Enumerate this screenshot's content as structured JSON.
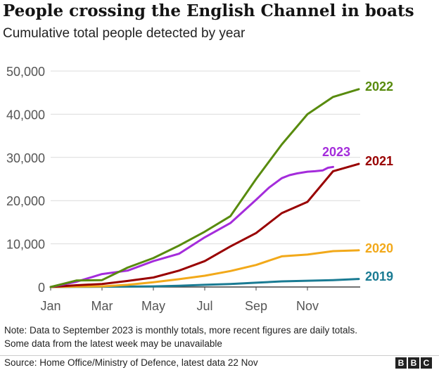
{
  "title": "People crossing the English Channel in boats",
  "subtitle": "Cumulative total people detected by year",
  "note_line1": "Note: Data to September 2023 is monthly totals, more recent figures are daily totals.",
  "note_line2": "Some data from the latest week may be unavailable",
  "source": "Source: Home Office/Ministry of Defence, latest data 22 Nov",
  "logo_letters": [
    "B",
    "B",
    "C"
  ],
  "chart_data": {
    "type": "line",
    "title": "People crossing the English Channel in boats",
    "subtitle": "Cumulative total people detected by year",
    "x_ticks": [
      "Jan",
      "Mar",
      "May",
      "Jul",
      "Sep",
      "Nov"
    ],
    "y_ticks": [
      "0",
      "10,000",
      "20,000",
      "30,000",
      "40,000",
      "50,000"
    ],
    "ylim": [
      0,
      50000
    ],
    "grid": true,
    "legend": "inline labels at line ends",
    "x_unit": "month index (0 = start of Jan)",
    "series": [
      {
        "name": "2022",
        "color": "#588b0e",
        "x": [
          0,
          1,
          2,
          3,
          4,
          5,
          6,
          7,
          8,
          9,
          10,
          11,
          12
        ],
        "y": [
          0,
          1500,
          1600,
          4500,
          6700,
          9600,
          12800,
          16400,
          25000,
          33000,
          40000,
          44000,
          45800
        ]
      },
      {
        "name": "2023",
        "color": "#a42cdb",
        "x": [
          0,
          1,
          2,
          3,
          4,
          5,
          6,
          7,
          8,
          8.5,
          9,
          9.3,
          9.6,
          10,
          10.3,
          10.6,
          10.8,
          11
        ],
        "y": [
          0,
          1200,
          3000,
          3800,
          6000,
          7700,
          11500,
          14800,
          20200,
          23000,
          25200,
          25900,
          26300,
          26700,
          26800,
          27000,
          27600,
          27800
        ]
      },
      {
        "name": "2021",
        "color": "#990000",
        "x": [
          0,
          1,
          2,
          3,
          4,
          5,
          6,
          7,
          8,
          9,
          10,
          11,
          12
        ],
        "y": [
          0,
          400,
          700,
          1400,
          2200,
          3800,
          6000,
          9400,
          12500,
          17100,
          19700,
          26800,
          28500
        ]
      },
      {
        "name": "2020",
        "color": "#f2a91a",
        "x": [
          0,
          1,
          2,
          3,
          4,
          5,
          6,
          7,
          8,
          9,
          10,
          11,
          12
        ],
        "y": [
          0,
          100,
          150,
          500,
          1100,
          1800,
          2600,
          3700,
          5100,
          7100,
          7500,
          8300,
          8500
        ]
      },
      {
        "name": "2019",
        "color": "#1a7b93",
        "x": [
          0,
          1,
          2,
          3,
          4,
          5,
          6,
          7,
          8,
          9,
          10,
          11,
          12
        ],
        "y": [
          0,
          30,
          60,
          100,
          150,
          300,
          500,
          700,
          1000,
          1300,
          1450,
          1600,
          1850
        ]
      }
    ]
  }
}
